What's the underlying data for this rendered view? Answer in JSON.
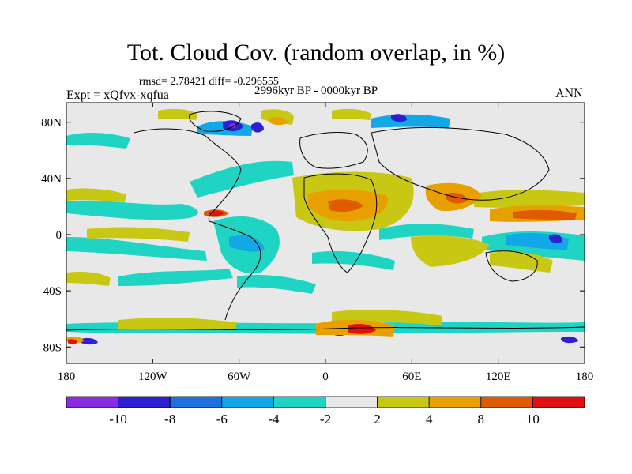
{
  "header": {
    "title": "Tot. Cloud Cov. (random overlap, in %)",
    "stats": "rmsd= 2.78421 diff= -0.296555",
    "period": "2996kyr BP - 0000kyr BP",
    "experiment": "Expt = xQfvx-xqfua",
    "season": "ANN"
  },
  "map": {
    "x_ticks": [
      "180",
      "120W",
      "60W",
      "0",
      "60E",
      "120E",
      "180"
    ],
    "y_ticks": [
      "80N",
      "40N",
      "0",
      "40S",
      "80S"
    ],
    "background_color": "#e8e8e8"
  },
  "colorbar": {
    "labels": [
      "-10",
      "-8",
      "-6",
      "-4",
      "-2",
      "2",
      "4",
      "8",
      "10"
    ],
    "colors": [
      "#8a2be2",
      "#2e1fd1",
      "#1f6fe0",
      "#12a8e8",
      "#20d4c4",
      "#e8e8e8",
      "#c8c814",
      "#e8a000",
      "#e05a00",
      "#e01010"
    ]
  }
}
